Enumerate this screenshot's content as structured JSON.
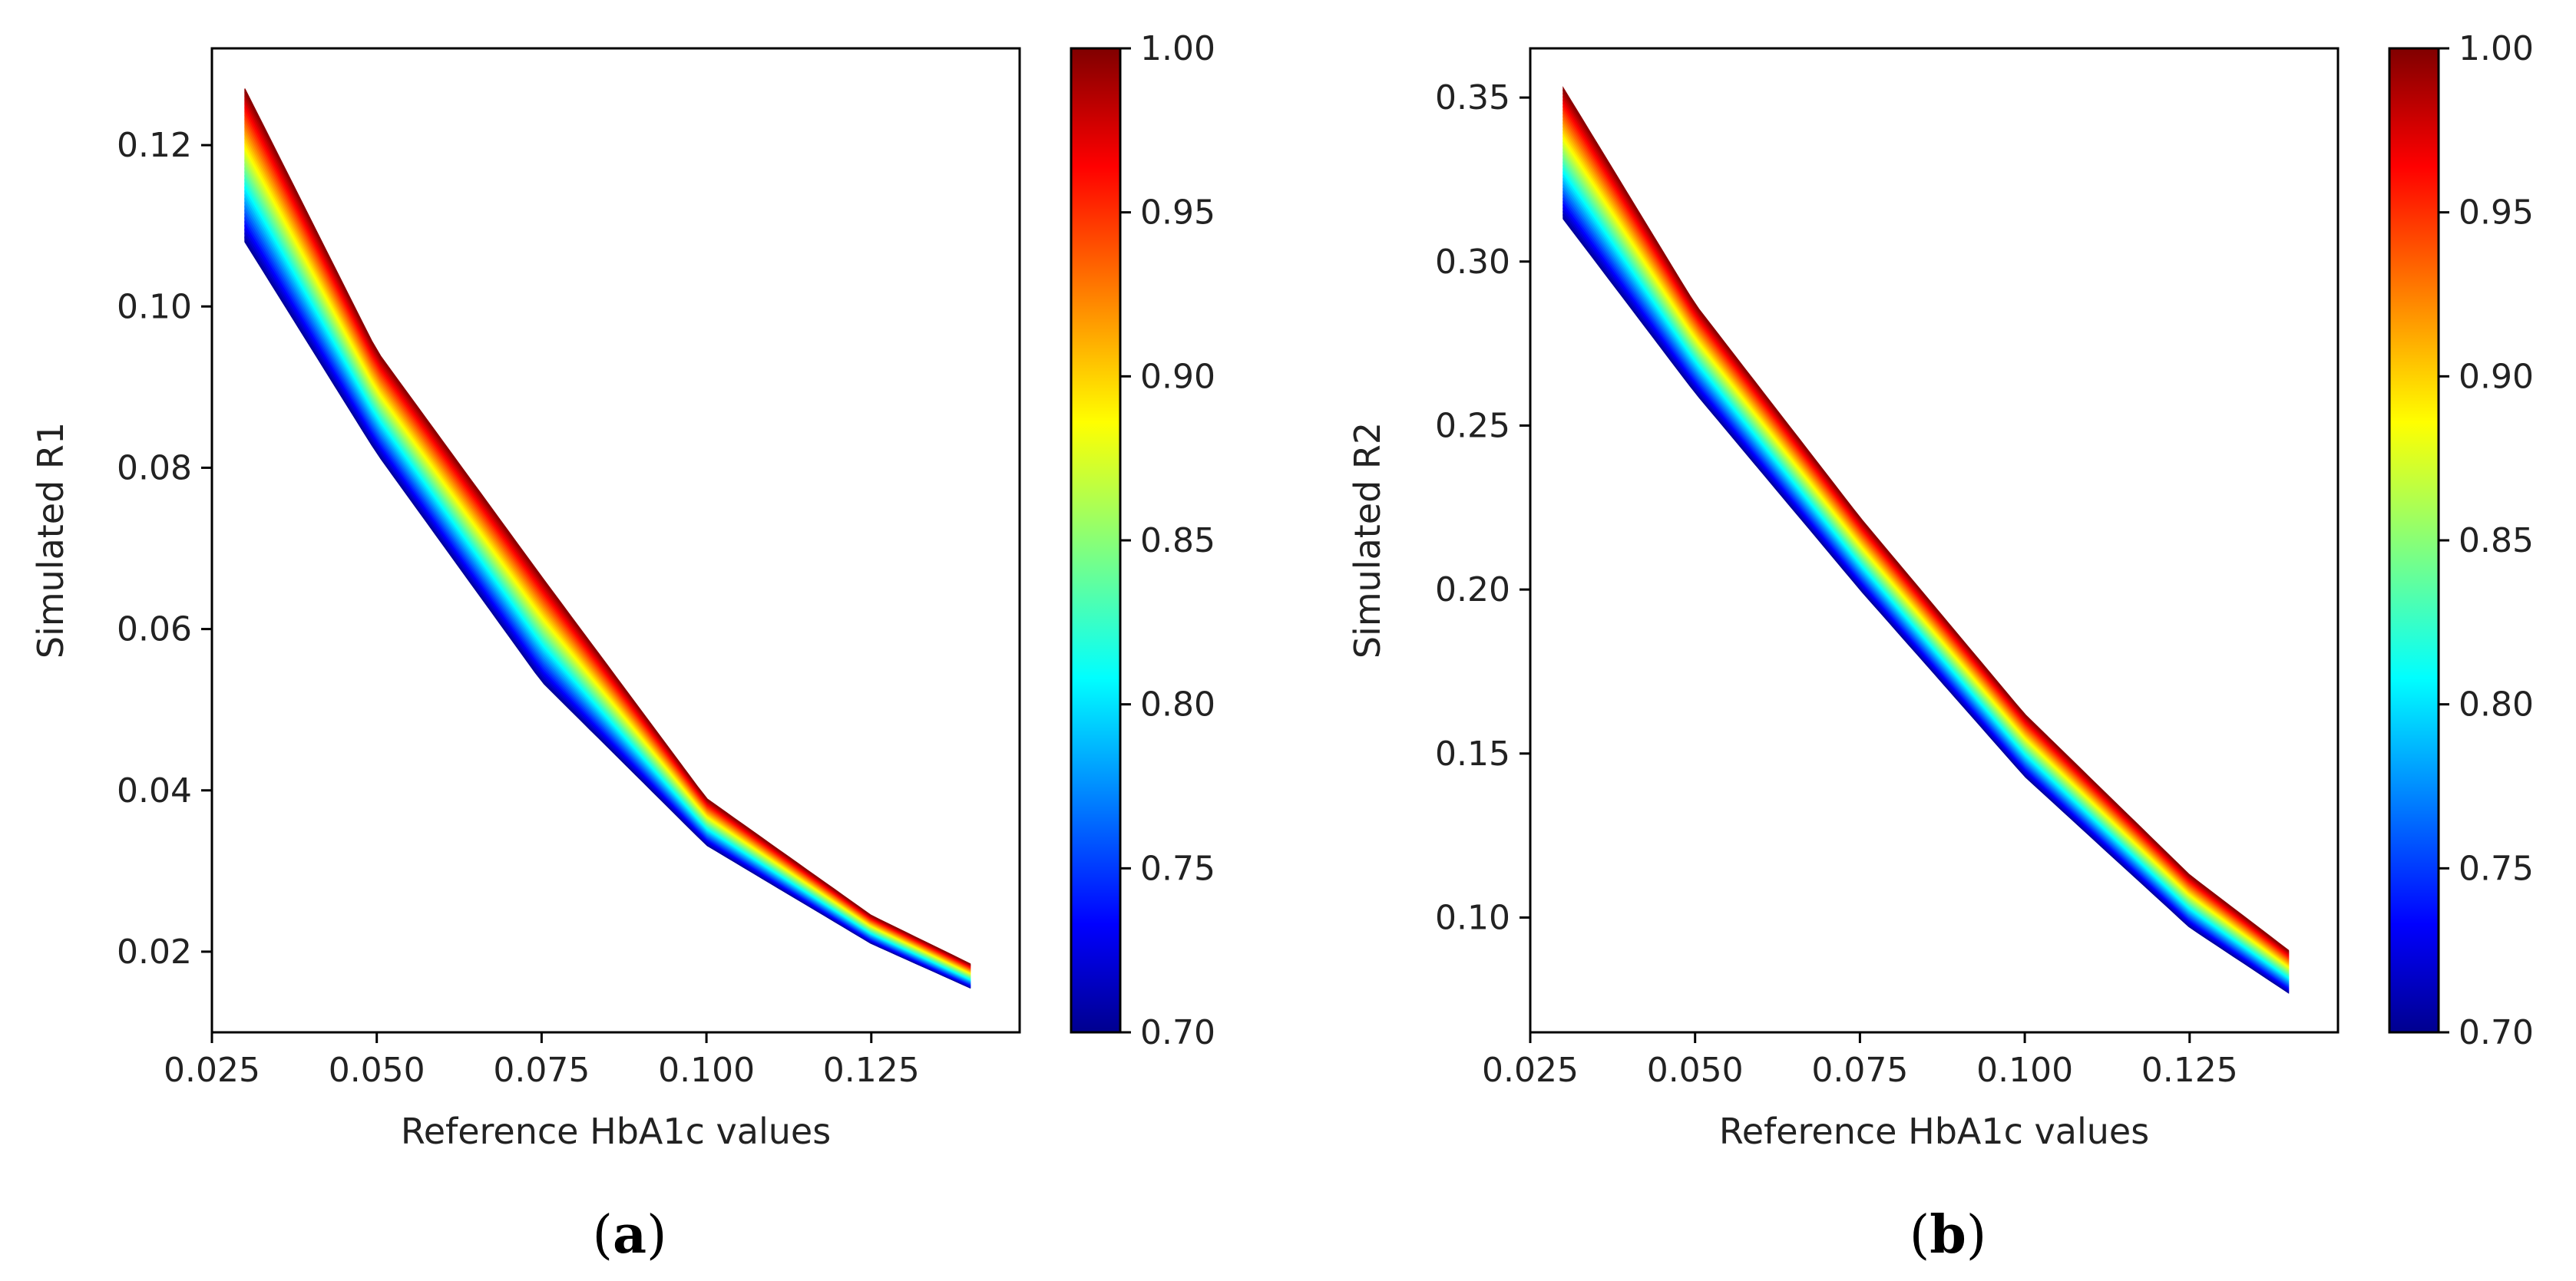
{
  "chart_data": [
    {
      "id": "a",
      "type": "heatmap",
      "caption": "a",
      "xlabel": "Reference HbA1c values",
      "ylabel": "Simulated R1",
      "xlim": [
        0.025,
        0.1475
      ],
      "ylim": [
        0.01,
        0.132
      ],
      "xticks": [
        0.025,
        0.05,
        0.075,
        0.1,
        0.125
      ],
      "xtick_labels": [
        "0.025",
        "0.050",
        "0.075",
        "0.100",
        "0.125"
      ],
      "yticks": [
        0.02,
        0.04,
        0.06,
        0.08,
        0.1,
        0.12
      ],
      "ytick_labels": [
        "0.02",
        "0.04",
        "0.06",
        "0.08",
        "0.10",
        "0.12"
      ],
      "colorbar": {
        "min": 0.7,
        "max": 1.0,
        "ticks": [
          0.7,
          0.75,
          0.8,
          0.85,
          0.9,
          0.95,
          1.0
        ],
        "tick_labels": [
          "0.70",
          "0.75",
          "0.80",
          "0.85",
          "0.90",
          "0.95",
          "1.00"
        ],
        "colormap": "jet"
      },
      "band": {
        "x_range": [
          0.03,
          0.14
        ],
        "upper_edge": [
          [
            0.03,
            0.127
          ],
          [
            0.05,
            0.0945
          ],
          [
            0.075,
            0.0665
          ],
          [
            0.1,
            0.039
          ],
          [
            0.125,
            0.0245
          ],
          [
            0.14,
            0.0185
          ]
        ],
        "lower_edge": [
          [
            0.03,
            0.108
          ],
          [
            0.05,
            0.0818
          ],
          [
            0.075,
            0.0535
          ],
          [
            0.1,
            0.0332
          ],
          [
            0.125,
            0.021
          ],
          [
            0.14,
            0.0155
          ]
        ],
        "color_at_upper": 1.0,
        "color_at_lower": 0.7
      }
    },
    {
      "id": "b",
      "type": "heatmap",
      "caption": "b",
      "xlabel": "Reference HbA1c values",
      "ylabel": "Simulated R2",
      "xlim": [
        0.025,
        0.1475
      ],
      "ylim": [
        0.065,
        0.365
      ],
      "xticks": [
        0.025,
        0.05,
        0.075,
        0.1,
        0.125
      ],
      "xtick_labels": [
        "0.025",
        "0.050",
        "0.075",
        "0.100",
        "0.125"
      ],
      "yticks": [
        0.1,
        0.15,
        0.2,
        0.25,
        0.3,
        0.35
      ],
      "ytick_labels": [
        "0.10",
        "0.15",
        "0.20",
        "0.25",
        "0.30",
        "0.35"
      ],
      "colorbar": {
        "min": 0.7,
        "max": 1.0,
        "ticks": [
          0.7,
          0.75,
          0.8,
          0.85,
          0.9,
          0.95,
          1.0
        ],
        "tick_labels": [
          "0.70",
          "0.75",
          "0.80",
          "0.85",
          "0.90",
          "0.95",
          "1.00"
        ],
        "colormap": "jet"
      },
      "band": {
        "x_range": [
          0.03,
          0.14
        ],
        "upper_edge": [
          [
            0.03,
            0.353
          ],
          [
            0.05,
            0.287
          ],
          [
            0.075,
            0.222
          ],
          [
            0.1,
            0.162
          ],
          [
            0.125,
            0.113
          ],
          [
            0.14,
            0.09
          ]
        ],
        "lower_edge": [
          [
            0.03,
            0.313
          ],
          [
            0.05,
            0.26
          ],
          [
            0.075,
            0.2
          ],
          [
            0.1,
            0.143
          ],
          [
            0.125,
            0.097
          ],
          [
            0.14,
            0.077
          ]
        ],
        "color_at_upper": 1.0,
        "color_at_lower": 0.7
      }
    }
  ]
}
